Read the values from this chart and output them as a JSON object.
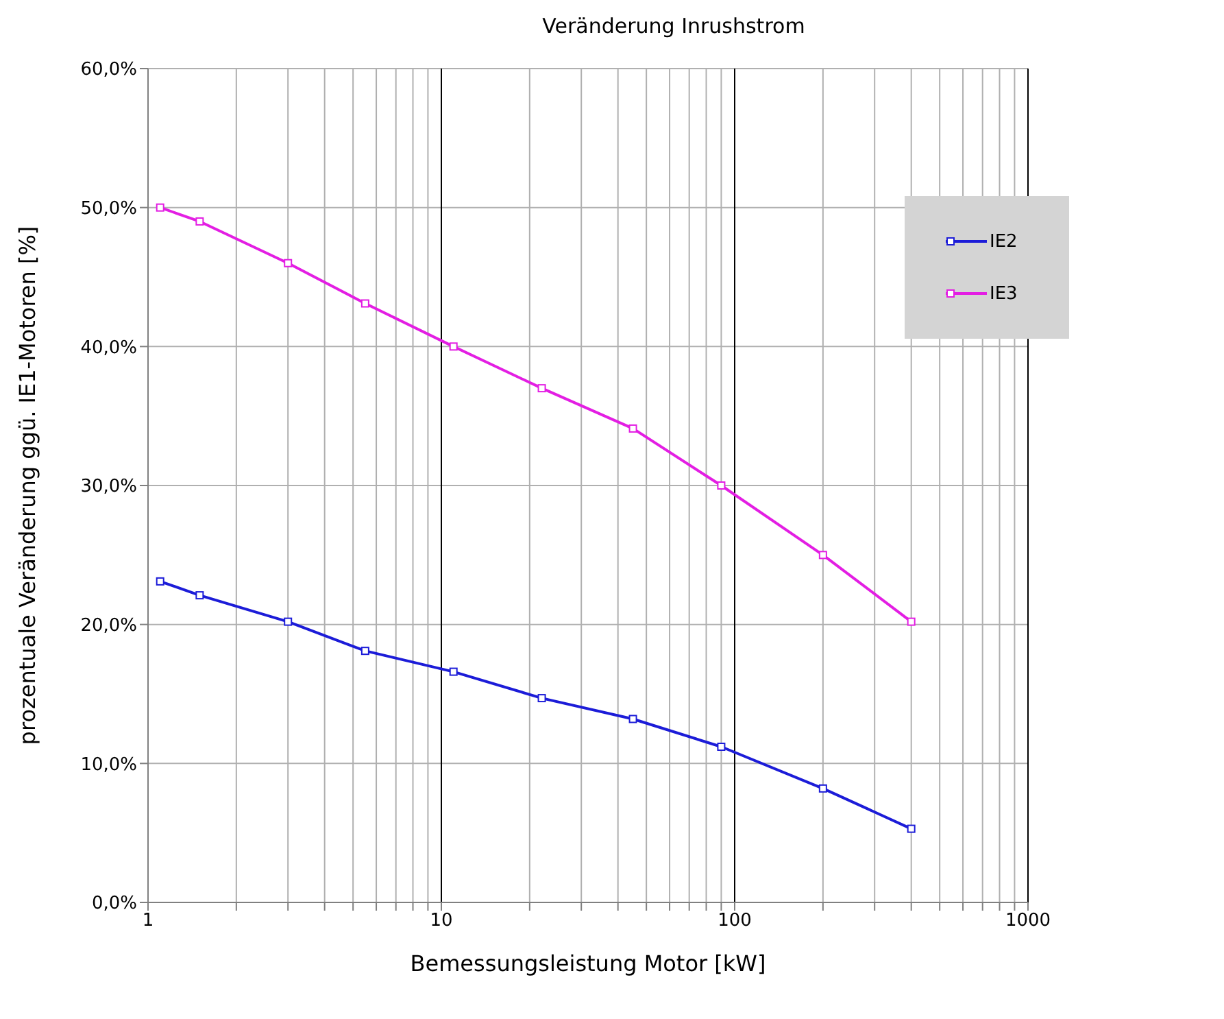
{
  "chart_data": {
    "type": "line",
    "title": "Veränderung Inrushstrom",
    "xlabel": "Bemessungsleistung Motor [kW]",
    "ylabel": "prozentuale Veränderung ggü. IE1-Motoren [%]",
    "x": [
      1.1,
      1.5,
      3,
      5.5,
      11,
      22,
      45,
      90,
      200,
      400
    ],
    "series": [
      {
        "name": "IE2",
        "color": "#1c1cd8",
        "values": [
          23.1,
          22.1,
          20.2,
          18.1,
          16.6,
          14.7,
          13.2,
          11.2,
          8.2,
          5.3
        ]
      },
      {
        "name": "IE3",
        "color": "#e31ee3",
        "values": [
          50,
          49,
          46,
          43.1,
          40,
          37,
          34.1,
          30,
          25,
          20.2
        ]
      }
    ],
    "log": "x",
    "xlim": [
      1,
      1000
    ],
    "xticks": [
      1,
      {
        "value": 2,
        "label": null
      },
      {
        "value": 3,
        "label": null
      },
      {
        "value": 4,
        "label": null
      },
      {
        "value": 5,
        "label": null
      },
      {
        "value": 6,
        "label": null
      },
      {
        "value": 7,
        "label": null
      },
      {
        "value": 8,
        "label": null
      },
      {
        "value": 9,
        "label": null
      },
      10,
      {
        "value": 20,
        "label": null
      },
      {
        "value": 30,
        "label": null
      },
      {
        "value": 40,
        "label": null
      },
      {
        "value": 50,
        "label": null
      },
      {
        "value": 60,
        "label": null
      },
      {
        "value": 70,
        "label": null
      },
      {
        "value": 80,
        "label": null
      },
      {
        "value": 90,
        "label": null
      },
      100,
      {
        "value": 200,
        "label": null
      },
      {
        "value": 300,
        "label": null
      },
      {
        "value": 400,
        "label": null
      },
      {
        "value": 500,
        "label": null
      },
      {
        "value": 600,
        "label": null
      },
      {
        "value": 700,
        "label": null
      },
      {
        "value": 800,
        "label": null
      },
      {
        "value": 900,
        "label": null
      },
      1000
    ],
    "ylim": [
      0,
      60
    ],
    "yticks": [
      {
        "value": 0,
        "label": "0,0%"
      },
      {
        "value": 10,
        "label": "10,0%"
      },
      {
        "value": 20,
        "label": "20,0%"
      },
      {
        "value": 30,
        "label": "30,0%"
      },
      {
        "value": 40,
        "label": "40,0%"
      },
      {
        "value": 50,
        "label": "50,0%"
      },
      {
        "value": 60,
        "label": "60,0%"
      }
    ],
    "grid": true,
    "legend": "top right",
    "marker": "square",
    "line_style": "solid"
  }
}
